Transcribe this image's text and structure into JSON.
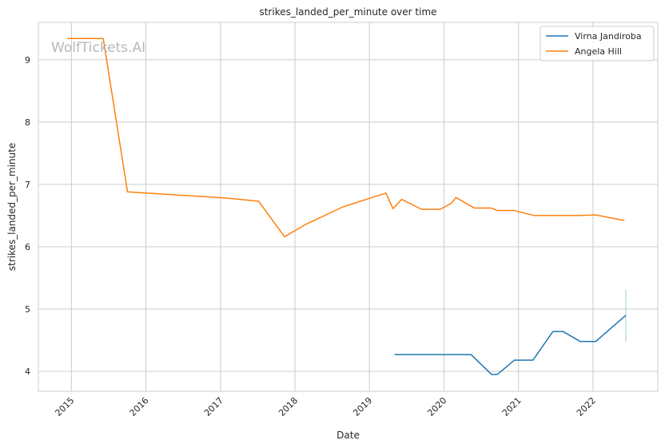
{
  "chart_data": {
    "type": "line",
    "title": "strikes_landed_per_minute over time",
    "xlabel": "Date",
    "ylabel": "strikes_landed_per_minute",
    "watermark": "WolfTickets.AI",
    "x_ticks": [
      "2015",
      "2016",
      "2017",
      "2018",
      "2019",
      "2020",
      "2021",
      "2022"
    ],
    "y_ticks": [
      "4",
      "5",
      "6",
      "7",
      "8",
      "9"
    ],
    "xlim": [
      "2014-07-23",
      "2022-11-15"
    ],
    "ylim": [
      3.68,
      9.6
    ],
    "grid": true,
    "legend_position": "top-right",
    "series": [
      {
        "name": "Virna Jandiroba",
        "color": "#1f77b4",
        "x": [
          "2019-05-04",
          "2020-05-13",
          "2020-08-22",
          "2020-09-19",
          "2020-12-12",
          "2021-03-13",
          "2021-06-19",
          "2021-08-07",
          "2021-10-30",
          "2022-01-15",
          "2022-06-11"
        ],
        "y": [
          4.27,
          4.27,
          3.95,
          3.95,
          4.18,
          4.18,
          4.64,
          4.64,
          4.48,
          4.48,
          4.9
        ]
      },
      {
        "name": "Angela Hill",
        "color": "#ff7f0e",
        "x": [
          "2014-12-12",
          "2015-06-06",
          "2015-10-03",
          "2017-02-04",
          "2017-07-07",
          "2017-11-11",
          "2018-02-24",
          "2018-08-25",
          "2019-03-23",
          "2019-04-27",
          "2019-06-08",
          "2019-09-14",
          "2019-12-14",
          "2020-02-08",
          "2020-02-29",
          "2020-05-30",
          "2020-08-22",
          "2020-09-19",
          "2020-12-12",
          "2021-03-20",
          "2021-06-12",
          "2021-10-16",
          "2022-01-15",
          "2022-06-04"
        ],
        "y": [
          9.34,
          9.34,
          6.88,
          6.78,
          6.73,
          6.16,
          6.36,
          6.64,
          6.86,
          6.61,
          6.76,
          6.6,
          6.6,
          6.7,
          6.79,
          6.62,
          6.62,
          6.58,
          6.58,
          6.5,
          6.5,
          6.5,
          6.51,
          6.42
        ]
      }
    ],
    "error_bar": {
      "x": "2022-06-11",
      "y_low": 4.48,
      "y_high": 5.31,
      "color": "#9fcfc0"
    }
  }
}
